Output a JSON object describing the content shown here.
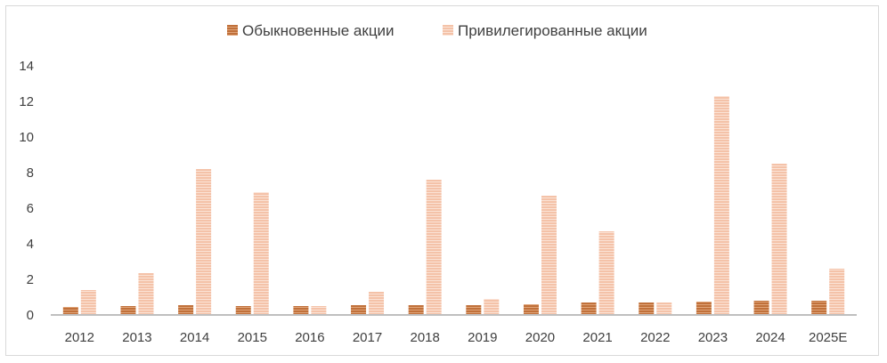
{
  "chart_data": {
    "type": "bar",
    "title": "",
    "xlabel": "",
    "ylabel": "",
    "categories": [
      "2012",
      "2013",
      "2014",
      "2015",
      "2016",
      "2017",
      "2018",
      "2019",
      "2020",
      "2021",
      "2022",
      "2023",
      "2024",
      "2025E"
    ],
    "series": [
      {
        "name": "Обыкновенные акции",
        "color": "#c0703a",
        "values": [
          0.45,
          0.5,
          0.55,
          0.5,
          0.5,
          0.55,
          0.55,
          0.55,
          0.6,
          0.7,
          0.7,
          0.75,
          0.8,
          0.8
        ]
      },
      {
        "name": "Привилегированные акции",
        "color": "#f4c2a8",
        "values": [
          1.4,
          2.35,
          8.2,
          6.9,
          0.5,
          1.3,
          7.6,
          0.9,
          6.7,
          4.7,
          0.7,
          12.3,
          8.5,
          2.6
        ]
      }
    ],
    "y_ticks": [
      "0",
      "2",
      "4",
      "6",
      "8",
      "10",
      "12",
      "14"
    ],
    "ylim": [
      0,
      14
    ],
    "grid": false,
    "legend_position": "top-center"
  }
}
